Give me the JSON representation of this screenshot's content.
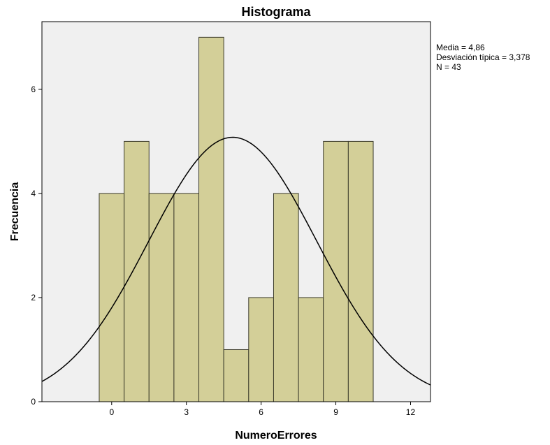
{
  "chart_data": {
    "type": "bar",
    "title": "Histograma",
    "xlabel": "NumeroErrores",
    "ylabel": "Frecuencia",
    "x": [
      0,
      1,
      2,
      3,
      4,
      5,
      6,
      7,
      8,
      9,
      10
    ],
    "values": [
      4,
      5,
      4,
      4,
      7,
      1,
      2,
      4,
      2,
      5,
      5
    ],
    "bin_width": 1,
    "xlim": [
      -2.8,
      12.8
    ],
    "ylim": [
      0,
      7.3
    ],
    "xticks": [
      0,
      3,
      6,
      9,
      12
    ],
    "yticks": [
      0,
      2,
      4,
      6
    ],
    "grid": false,
    "normal_curve": {
      "mean": 4.86,
      "std": 3.378,
      "n": 43
    },
    "stats": {
      "mean_text": "Media = 4,86",
      "std_text": "Desviación típica = 3,378",
      "n_text": "N = 43"
    },
    "colors": {
      "bar_fill": "#d3cf98",
      "bar_stroke": "#3a3a2a",
      "plot_bg": "#f0f0f0",
      "curve": "#000000"
    }
  }
}
